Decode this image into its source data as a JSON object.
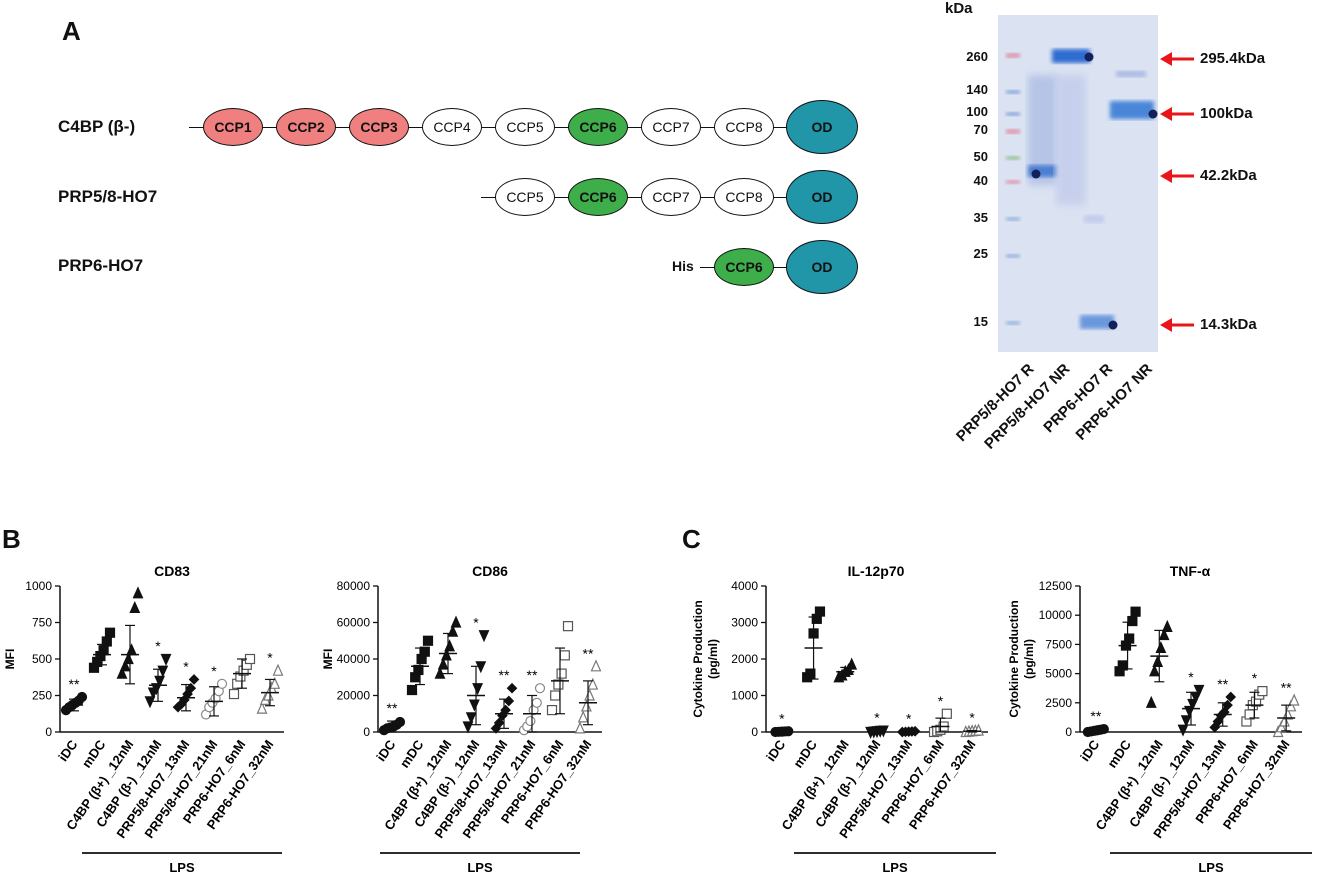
{
  "panel_a": {
    "label": "A",
    "constructs": [
      {
        "name": "C4BP (β-)",
        "domains": [
          {
            "label": "CCP1",
            "color": "#f08080"
          },
          {
            "label": "CCP2",
            "color": "#f08080"
          },
          {
            "label": "CCP3",
            "color": "#f08080"
          },
          {
            "label": "CCP4",
            "color": "#ffffff"
          },
          {
            "label": "CCP5",
            "color": "#ffffff"
          },
          {
            "label": "CCP6",
            "color": "#3dae49"
          },
          {
            "label": "CCP7",
            "color": "#ffffff"
          },
          {
            "label": "CCP8",
            "color": "#ffffff"
          },
          {
            "label": "OD",
            "color": "#2196a8"
          }
        ]
      },
      {
        "name": "PRP5/8-HO7",
        "domains": [
          {
            "label": "CCP5",
            "color": "#ffffff"
          },
          {
            "label": "CCP6",
            "color": "#3dae49"
          },
          {
            "label": "CCP7",
            "color": "#ffffff"
          },
          {
            "label": "CCP8",
            "color": "#ffffff"
          },
          {
            "label": "OD",
            "color": "#2196a8"
          }
        ]
      },
      {
        "name": "PRP6-HO7",
        "tag": "His",
        "domains": [
          {
            "label": "CCP6",
            "color": "#3dae49"
          },
          {
            "label": "OD",
            "color": "#2196a8"
          }
        ]
      }
    ],
    "gel": {
      "unit_label": "kDa",
      "marker_labels": [
        "260",
        "140",
        "100",
        "70",
        "50",
        "40",
        "35",
        "25",
        "15"
      ],
      "lanes": [
        "PRP5/8-HO7  R",
        "PRP5/8-HO7  NR",
        "PRP6-HO7  R",
        "PRP6-HO7  NR"
      ],
      "arrows": [
        "295.4kDa",
        "100kDa",
        "42.2kDa",
        "14.3kDa"
      ]
    }
  },
  "panel_b_label": "B",
  "panel_c_label": "C",
  "group_label": "LPS",
  "chart_data": [
    {
      "type": "scatter",
      "title": "CD83",
      "ylabel": "MFI",
      "ylim": [
        0,
        1000
      ],
      "yticks": [
        0,
        250,
        500,
        750,
        1000
      ],
      "categories": [
        "iDC",
        "mDC",
        "C4BP (β+) _12nM",
        "C4BP (β-) _12nM",
        "PRP5/8-HO7_13nM",
        "PRP5/8-HO7_21nM",
        "PRP6-HO7_6nM",
        "PRP6-HO7_32nM"
      ],
      "means": [
        185,
        530,
        530,
        320,
        235,
        210,
        400,
        270
      ],
      "sd": [
        40,
        70,
        200,
        110,
        90,
        100,
        100,
        90
      ],
      "points": [
        [
          150,
          170,
          185,
          200,
          215,
          240
        ],
        [
          440,
          480,
          520,
          560,
          620,
          680
        ],
        [
          400,
          450,
          500,
          560,
          850,
          950
        ],
        [
          210,
          270,
          300,
          350,
          420,
          500
        ],
        [
          170,
          190,
          220,
          260,
          300,
          360
        ],
        [
          120,
          170,
          200,
          230,
          280,
          330
        ],
        [
          260,
          330,
          380,
          420,
          460,
          500
        ],
        [
          160,
          220,
          250,
          300,
          330,
          420
        ]
      ],
      "significance": [
        "**",
        "",
        "",
        "*",
        "*",
        "*",
        "",
        "*"
      ]
    },
    {
      "type": "scatter",
      "title": "CD86",
      "ylabel": "MFI",
      "ylim": [
        0,
        80000
      ],
      "yticks": [
        0,
        20000,
        40000,
        60000,
        80000
      ],
      "categories": [
        "iDC",
        "mDC",
        "C4BP (β+) _12nM",
        "C4BP (β-) _12nM",
        "PRP5/8-HO7_13nM",
        "PRP5/8-HO7_21nM",
        "PRP6-HO7_6nM",
        "PRP6-HO7_32nM"
      ],
      "means": [
        3000,
        36000,
        43000,
        20000,
        10000,
        10000,
        28000,
        16000
      ],
      "sd": [
        3000,
        10000,
        11000,
        16000,
        8000,
        10000,
        18000,
        12000
      ],
      "points": [
        [
          1000,
          2000,
          2500,
          3000,
          4000,
          5500
        ],
        [
          23000,
          30000,
          34000,
          40000,
          44000,
          50000
        ],
        [
          32000,
          37000,
          42000,
          47000,
          55000,
          60000
        ],
        [
          3000,
          8000,
          15000,
          24000,
          36000,
          53000
        ],
        [
          2000,
          5000,
          9000,
          12000,
          17000,
          24000
        ],
        [
          1000,
          3000,
          6000,
          12000,
          16000,
          24000
        ],
        [
          12000,
          20000,
          26000,
          32000,
          42000,
          58000
        ],
        [
          2000,
          8000,
          14000,
          20000,
          26000,
          36000
        ]
      ],
      "significance": [
        "**",
        "",
        "",
        "*",
        "**",
        "**",
        "",
        "**"
      ]
    },
    {
      "type": "scatter",
      "title": "IL-12p70",
      "ylabel": "Cytokine Production (pg/ml)",
      "ylim": [
        0,
        4000
      ],
      "yticks": [
        0,
        1000,
        2000,
        3000,
        4000
      ],
      "categories": [
        "iDC",
        "mDC",
        "C4BP (β+) _12nM",
        "C4BP (β-) _12nM",
        "PRP5/8-HO7_13nM",
        "PRP6-HO7_6nM",
        "PRP6-HO7_32nM"
      ],
      "means": [
        10,
        2300,
        1650,
        20,
        10,
        150,
        20
      ],
      "sd": [
        10,
        850,
        120,
        20,
        10,
        230,
        20
      ],
      "points": [
        [
          0,
          5,
          10,
          15,
          20
        ],
        [
          1500,
          1600,
          2700,
          3100,
          3300
        ],
        [
          1500,
          1550,
          1650,
          1700,
          1850
        ],
        [
          0,
          10,
          20,
          30,
          40
        ],
        [
          0,
          5,
          10,
          15,
          20
        ],
        [
          0,
          20,
          60,
          150,
          500
        ],
        [
          0,
          10,
          20,
          30,
          40
        ]
      ],
      "significance": [
        "*",
        "",
        "",
        "*",
        "*",
        "*",
        "*"
      ]
    },
    {
      "type": "scatter",
      "title": "TNF-α",
      "ylabel": "Cytokine Production (pg/ml)",
      "ylim": [
        0,
        12500
      ],
      "yticks": [
        0,
        2500,
        5000,
        7500,
        10000,
        12500
      ],
      "categories": [
        "iDC",
        "mDC",
        "C4BP (β+) _12nM",
        "C4BP (β-) _12nM",
        "PRP5/8-HO7_13nM",
        "PRP6-HO7_6nM",
        "PRP6-HO7_32nM"
      ],
      "means": [
        100,
        7400,
        6500,
        2000,
        1500,
        2300,
        1200
      ],
      "sd": [
        80,
        2000,
        2200,
        1400,
        1000,
        1100,
        1100
      ],
      "points": [
        [
          0,
          50,
          100,
          150,
          200,
          250
        ],
        [
          5200,
          5700,
          7400,
          8000,
          9500,
          10300
        ],
        [
          2500,
          5200,
          6000,
          7200,
          8300,
          9000
        ],
        [
          200,
          1000,
          1800,
          2400,
          3000,
          3600
        ],
        [
          400,
          900,
          1400,
          1700,
          2300,
          3000
        ],
        [
          900,
          1500,
          2300,
          2600,
          3200,
          3500
        ],
        [
          0,
          400,
          900,
          1500,
          2200,
          2700
        ]
      ],
      "significance": [
        "**",
        "",
        "",
        "*",
        "**",
        "*",
        "**"
      ]
    }
  ]
}
